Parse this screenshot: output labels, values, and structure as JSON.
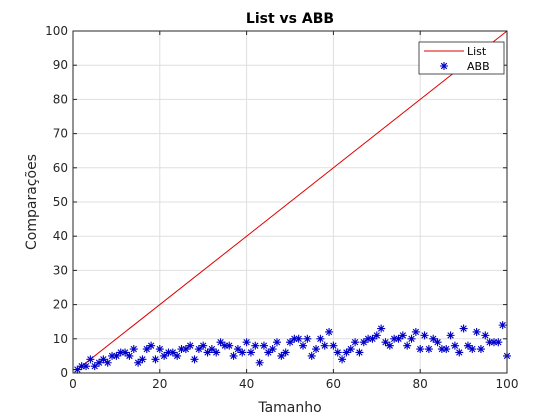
{
  "chart_data": {
    "type": "line",
    "title": "List vs ABB",
    "xlabel": "Tamanho",
    "ylabel": "Comparações",
    "xlim": [
      0,
      100
    ],
    "ylim": [
      0,
      100
    ],
    "xticks": [
      0,
      20,
      40,
      60,
      80,
      100
    ],
    "yticks": [
      0,
      10,
      20,
      30,
      40,
      50,
      60,
      70,
      80,
      90,
      100
    ],
    "grid": true,
    "legend_position": "top-right",
    "colors": {
      "list": "#e00000",
      "abb": "#0000c8"
    },
    "series": [
      {
        "name": "List",
        "style": "line",
        "x": [
          1,
          100
        ],
        "y": [
          1,
          100
        ]
      },
      {
        "name": "ABB",
        "style": "asterisk",
        "x": [
          1,
          2,
          3,
          4,
          5,
          6,
          7,
          8,
          9,
          10,
          11,
          12,
          13,
          14,
          15,
          16,
          17,
          18,
          19,
          20,
          21,
          22,
          23,
          24,
          25,
          26,
          27,
          28,
          29,
          30,
          31,
          32,
          33,
          34,
          35,
          36,
          37,
          38,
          39,
          40,
          41,
          42,
          43,
          44,
          45,
          46,
          47,
          48,
          49,
          50,
          51,
          52,
          53,
          54,
          55,
          56,
          57,
          58,
          59,
          60,
          61,
          62,
          63,
          64,
          65,
          66,
          67,
          68,
          69,
          70,
          71,
          72,
          73,
          74,
          75,
          76,
          77,
          78,
          79,
          80,
          81,
          82,
          83,
          84,
          85,
          86,
          87,
          88,
          89,
          90,
          91,
          92,
          93,
          94,
          95,
          96,
          97,
          98,
          99,
          100
        ],
        "y": [
          1,
          2,
          2,
          4,
          2,
          3,
          4,
          3,
          5,
          5,
          6,
          6,
          5,
          7,
          3,
          4,
          7,
          8,
          4,
          7,
          5,
          6,
          6,
          5,
          7,
          7,
          8,
          4,
          7,
          8,
          6,
          7,
          6,
          9,
          8,
          8,
          5,
          7,
          6,
          9,
          6,
          8,
          3,
          8,
          6,
          7,
          9,
          5,
          6,
          9,
          10,
          10,
          8,
          10,
          5,
          7,
          10,
          8,
          12,
          8,
          6,
          4,
          6,
          7,
          9,
          6,
          9,
          10,
          10,
          11,
          13,
          9,
          8,
          10,
          10,
          11,
          8,
          10,
          12,
          7,
          11,
          7,
          10,
          9,
          7,
          7,
          11,
          8,
          6,
          13,
          8,
          7,
          12,
          7,
          11,
          9,
          9,
          9,
          14,
          5
        ]
      }
    ]
  }
}
